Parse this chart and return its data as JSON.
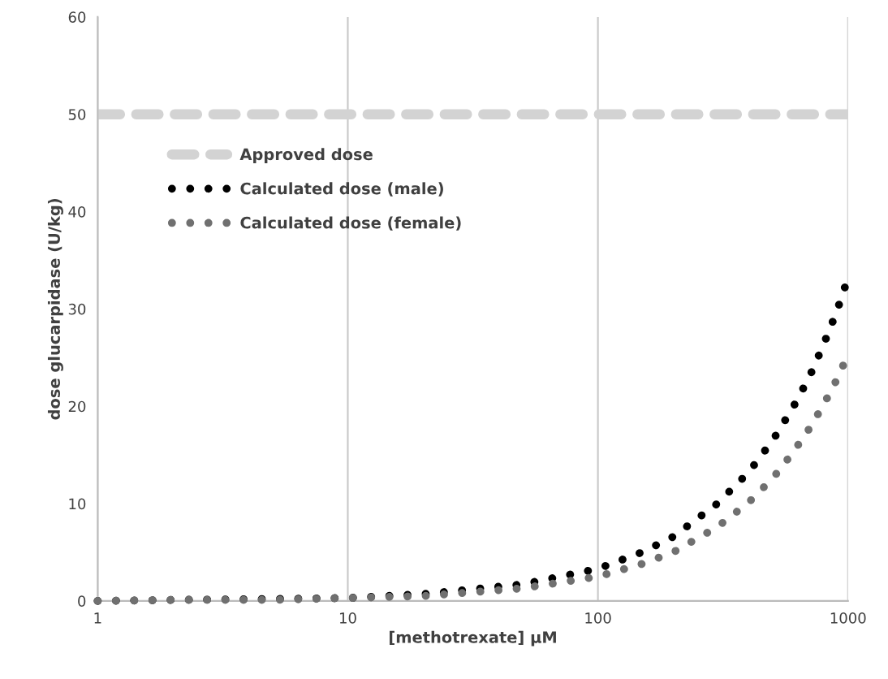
{
  "chart_data": {
    "type": "line",
    "xlabel": "[methotrexate] µM",
    "ylabel": "dose glucarpidase (U/kg)",
    "x": [
      1,
      2,
      5,
      10,
      20,
      50,
      100,
      150,
      200,
      300,
      400,
      500,
      600,
      700,
      800,
      900,
      1000
    ],
    "series": [
      {
        "name": "Calculated dose (male)",
        "color": "#000000",
        "values": [
          0,
          0.1,
          0.2,
          0.3,
          0.7,
          1.7,
          3.3,
          5,
          6.6,
          10,
          13.2,
          16.5,
          19.8,
          23,
          26.4,
          29.7,
          33.2
        ]
      },
      {
        "name": "Calculated dose (female)",
        "color": "#707070",
        "values": [
          0,
          0.1,
          0.1,
          0.3,
          0.5,
          1.3,
          2.5,
          3.8,
          5,
          7.6,
          10.1,
          12.6,
          15.2,
          17.7,
          20.2,
          22.7,
          25.3
        ]
      }
    ],
    "ref_lines": [
      {
        "axis": "y",
        "value": 50,
        "label": "Approved dose",
        "color": "#d3d3d3",
        "line_style": "dashed"
      }
    ],
    "log": "x",
    "xlim": [
      1,
      1000
    ],
    "xticks": [
      1,
      10,
      100,
      1000
    ],
    "ylim": [
      0,
      60
    ],
    "yticks": [
      0,
      10,
      20,
      30,
      40,
      50,
      60
    ],
    "grid": "x",
    "legend": "top left",
    "line_style": "dotted",
    "marker": "none"
  }
}
